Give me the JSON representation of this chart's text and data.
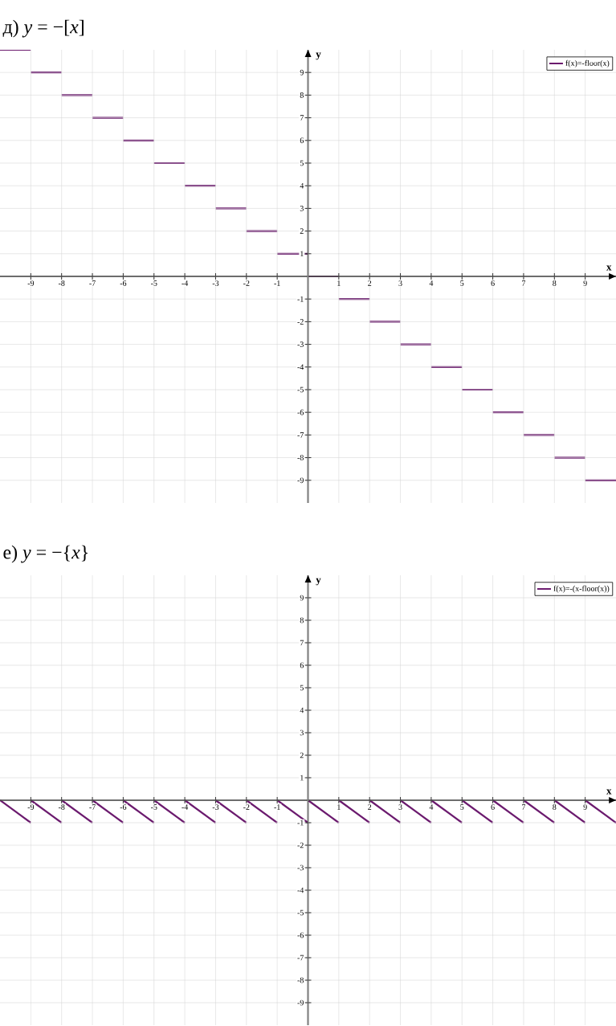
{
  "chart_data": [
    {
      "type": "step",
      "title": "д) *y* = −[*x*]",
      "xlabel": "x",
      "ylabel": "y",
      "xlim": [
        -10,
        10
      ],
      "ylim": [
        -10,
        10
      ],
      "xticks": [
        -9,
        -8,
        -7,
        -6,
        -5,
        -4,
        -3,
        -2,
        -1,
        1,
        2,
        3,
        4,
        5,
        6,
        7,
        8,
        9
      ],
      "yticks": [
        -9,
        -8,
        -7,
        -6,
        -5,
        -4,
        -3,
        -2,
        -1,
        1,
        2,
        3,
        4,
        5,
        6,
        7,
        8,
        9
      ],
      "grid": true,
      "legend": "top right",
      "series": [
        {
          "name": "f(x)=-floor(x)",
          "color": "#6b1a6e",
          "x": [
            -10,
            -9,
            -8,
            -7,
            -6,
            -5,
            -4,
            -3,
            -2,
            -1,
            0,
            1,
            2,
            3,
            4,
            5,
            6,
            7,
            8,
            9,
            10
          ],
          "values": [
            10,
            9,
            8,
            7,
            6,
            5,
            4,
            3,
            2,
            1,
            0,
            -1,
            -2,
            -3,
            -4,
            -5,
            -6,
            -7,
            -8,
            -9,
            -9
          ]
        }
      ]
    },
    {
      "type": "line",
      "title": "е) *y* = −{*x*}",
      "xlabel": "x",
      "ylabel": "y",
      "xlim": [
        -10,
        10
      ],
      "ylim": [
        -10,
        10
      ],
      "xticks": [
        -9,
        -8,
        -7,
        -6,
        -5,
        -4,
        -3,
        -2,
        -1,
        1,
        2,
        3,
        4,
        5,
        6,
        7,
        8,
        9
      ],
      "yticks": [
        -9,
        -8,
        -7,
        -6,
        -5,
        -4,
        -3,
        -2,
        -1,
        1,
        2,
        3,
        4,
        5,
        6,
        7,
        8,
        9
      ],
      "grid": true,
      "legend": "top right",
      "series": [
        {
          "name": "f(x)=-(x-floor(x))",
          "color": "#6b1a6e",
          "x": [
            -10,
            -9
          ],
          "values": [
            0,
            -1
          ]
        },
        {
          "color": "#6b1a6e",
          "x": [
            -9,
            -8
          ],
          "values": [
            0,
            -1
          ]
        },
        {
          "color": "#6b1a6e",
          "x": [
            -8,
            -7
          ],
          "values": [
            0,
            -1
          ]
        },
        {
          "color": "#6b1a6e",
          "x": [
            -7,
            -6
          ],
          "values": [
            0,
            -1
          ]
        },
        {
          "color": "#6b1a6e",
          "x": [
            -6,
            -5
          ],
          "values": [
            0,
            -1
          ]
        },
        {
          "color": "#6b1a6e",
          "x": [
            -5,
            -4
          ],
          "values": [
            0,
            -1
          ]
        },
        {
          "color": "#6b1a6e",
          "x": [
            -4,
            -3
          ],
          "values": [
            0,
            -1
          ]
        },
        {
          "color": "#6b1a6e",
          "x": [
            -3,
            -2
          ],
          "values": [
            0,
            -1
          ]
        },
        {
          "color": "#6b1a6e",
          "x": [
            -2,
            -1
          ],
          "values": [
            0,
            -1
          ]
        },
        {
          "color": "#6b1a6e",
          "x": [
            -1,
            0
          ],
          "values": [
            0,
            -1
          ]
        },
        {
          "color": "#6b1a6e",
          "x": [
            0,
            1
          ],
          "values": [
            0,
            -1
          ]
        },
        {
          "color": "#6b1a6e",
          "x": [
            1,
            2
          ],
          "values": [
            0,
            -1
          ]
        },
        {
          "color": "#6b1a6e",
          "x": [
            2,
            3
          ],
          "values": [
            0,
            -1
          ]
        },
        {
          "color": "#6b1a6e",
          "x": [
            3,
            4
          ],
          "values": [
            0,
            -1
          ]
        },
        {
          "color": "#6b1a6e",
          "x": [
            4,
            5
          ],
          "values": [
            0,
            -1
          ]
        },
        {
          "color": "#6b1a6e",
          "x": [
            5,
            6
          ],
          "values": [
            0,
            -1
          ]
        },
        {
          "color": "#6b1a6e",
          "x": [
            6,
            7
          ],
          "values": [
            0,
            -1
          ]
        },
        {
          "color": "#6b1a6e",
          "x": [
            7,
            8
          ],
          "values": [
            0,
            -1
          ]
        },
        {
          "color": "#6b1a6e",
          "x": [
            8,
            9
          ],
          "values": [
            0,
            -1
          ]
        },
        {
          "color": "#6b1a6e",
          "x": [
            9,
            10
          ],
          "values": [
            0,
            -1
          ]
        }
      ]
    }
  ]
}
